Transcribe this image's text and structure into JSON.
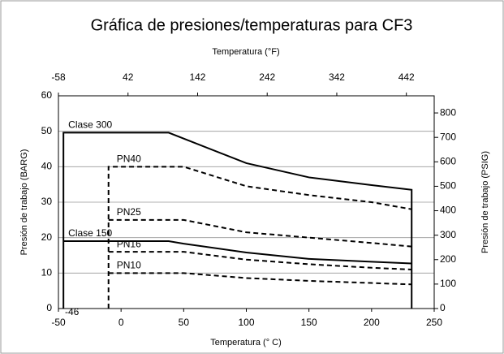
{
  "chart_data": {
    "type": "line",
    "title": "Gráfica de presiones/temperaturas para CF3",
    "xlabel": "Temperatura (° C)",
    "x2label": "Temperatura (°F)",
    "ylabel": "Presión de trabajo (BARG)",
    "y2label": "Presión de trabajo (PSIG)",
    "xlim": [
      -50,
      250
    ],
    "xticks": [
      -50,
      0,
      50,
      100,
      150,
      200,
      250
    ],
    "x2lim": [
      -58,
      482
    ],
    "x2ticks": [
      -58,
      42,
      142,
      242,
      342,
      442
    ],
    "ylim": [
      0,
      60
    ],
    "yticks": [
      0,
      10,
      20,
      30,
      40,
      50,
      60
    ],
    "y2lim": [
      0,
      870
    ],
    "y2ticks": [
      0,
      100,
      200,
      300,
      400,
      500,
      600,
      700,
      800
    ],
    "grid": true,
    "annotations": [
      "-46"
    ],
    "series": [
      {
        "name": "Clase 300",
        "color": "#000000",
        "dashed": false,
        "x": [
          -46,
          -46,
          38,
          100,
          150,
          200,
          232,
          232
        ],
        "values": [
          0,
          49.6,
          49.6,
          41,
          37,
          34.8,
          33.5,
          0
        ]
      },
      {
        "name": "PN40",
        "color": "#000000",
        "dashed": true,
        "x": [
          -10,
          -10,
          50,
          100,
          150,
          200,
          232
        ],
        "values": [
          0,
          40,
          40,
          34.5,
          32,
          30,
          28
        ]
      },
      {
        "name": "PN25",
        "color": "#000000",
        "dashed": true,
        "x": [
          -10,
          50,
          100,
          150,
          200,
          232
        ],
        "values": [
          25,
          25,
          21.5,
          20,
          18.5,
          17.5
        ]
      },
      {
        "name": "Clase 150",
        "color": "#000000",
        "dashed": false,
        "x": [
          -46,
          38,
          50,
          100,
          150,
          200,
          232
        ],
        "values": [
          19,
          19,
          18.3,
          15.8,
          14,
          13.2,
          12.7
        ]
      },
      {
        "name": "PN16",
        "color": "#000000",
        "dashed": true,
        "x": [
          -10,
          50,
          100,
          150,
          200,
          232
        ],
        "values": [
          16,
          16,
          13.8,
          12.5,
          11.5,
          11
        ]
      },
      {
        "name": "PN10",
        "color": "#000000",
        "dashed": true,
        "x": [
          -10,
          50,
          100,
          150,
          200,
          232
        ],
        "values": [
          10,
          10,
          8.6,
          7.8,
          7.2,
          6.8
        ]
      }
    ]
  }
}
